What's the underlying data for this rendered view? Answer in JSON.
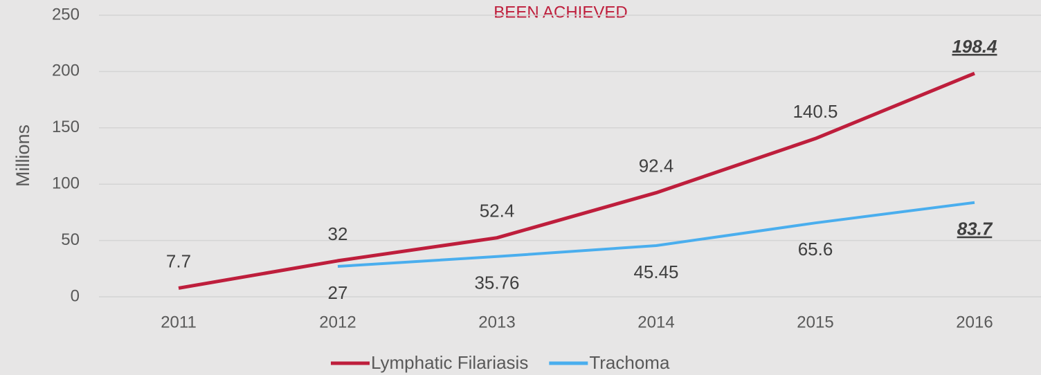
{
  "chart_data": {
    "type": "line",
    "annotation": "BEEN ACHIEVED",
    "y_label": "Millions",
    "categories": [
      "2011",
      "2012",
      "2013",
      "2014",
      "2015",
      "2016"
    ],
    "series": [
      {
        "name": "Lymphatic Filariasis",
        "color": "#be1e3c",
        "values": [
          7.7,
          32,
          52.4,
          92.4,
          140.5,
          198.4
        ]
      },
      {
        "name": "Trachoma",
        "color": "#4aaeee",
        "values": [
          null,
          27,
          35.76,
          45.45,
          65.6,
          83.7
        ]
      }
    ],
    "ylim": [
      0,
      250
    ],
    "yticks": [
      0,
      50,
      100,
      150,
      200,
      250
    ],
    "grid": true,
    "legend": "bottom"
  }
}
